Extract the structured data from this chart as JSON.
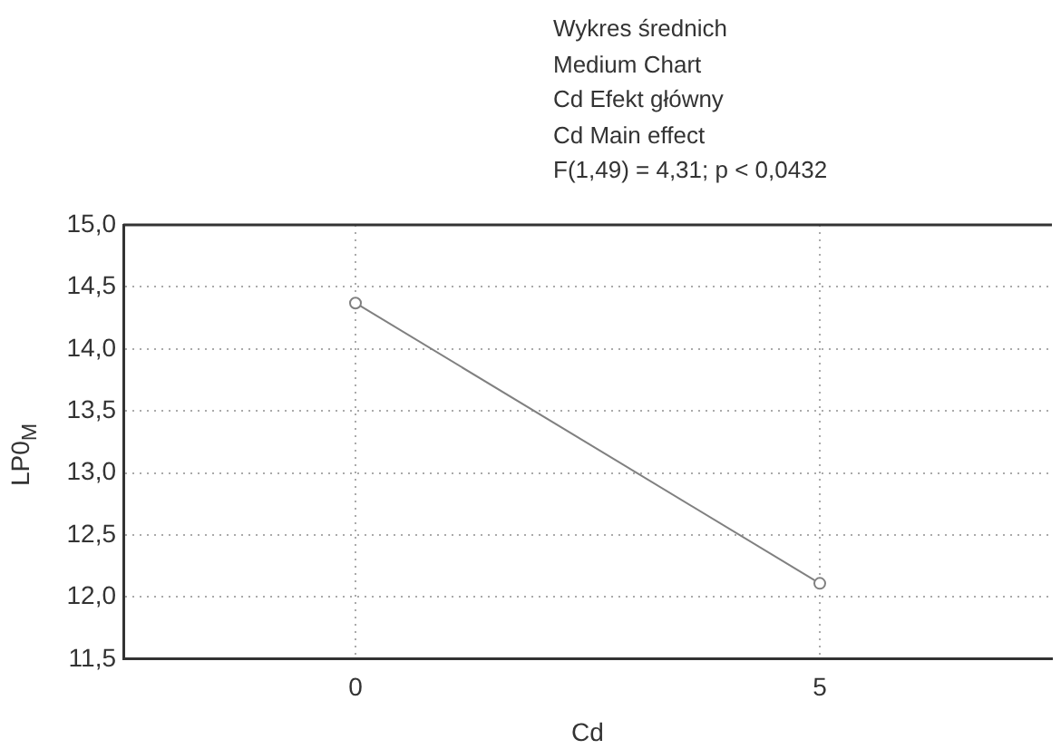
{
  "chart_data": {
    "type": "line",
    "title": "Wykres średnich\nMedium Chart\nCd Efekt główny\nCd Main effect",
    "subtitle": "F(1,49) = 4,31; p < 0,0432",
    "xlabel": "Cd",
    "ylabel": "LP0$_{M}$",
    "categories": [
      "0",
      "5"
    ],
    "series": [
      {
        "color": "#808080",
        "values": [
          14.37,
          12.11
        ]
      }
    ],
    "ylim": [
      11.5,
      15
    ],
    "yticks": [
      {
        "value": 11.5,
        "label": "11,5"
      },
      {
        "value": 12,
        "label": "12,0"
      },
      {
        "value": 12.5,
        "label": "12,5"
      },
      {
        "value": 13,
        "label": "13,0"
      },
      {
        "value": 13.5,
        "label": "13,5"
      },
      {
        "value": 14,
        "label": "14,0"
      },
      {
        "value": 14.5,
        "label": "14,5"
      },
      {
        "value": 15,
        "label": "15,0"
      }
    ],
    "grid": true,
    "legend": false,
    "marker": "circle",
    "line_style": "solid"
  }
}
